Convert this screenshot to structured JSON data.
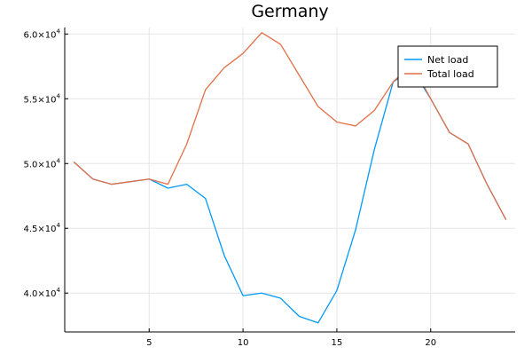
{
  "chart_data": {
    "type": "line",
    "title": "Germany",
    "xlabel": "",
    "ylabel": "",
    "x": [
      1,
      2,
      3,
      4,
      5,
      6,
      7,
      8,
      9,
      10,
      11,
      12,
      13,
      14,
      15,
      16,
      17,
      18,
      19,
      20,
      21,
      22,
      23,
      24
    ],
    "xlim": [
      0.5,
      24.5
    ],
    "ylim": [
      37000,
      60500
    ],
    "xticks": [
      5,
      10,
      15,
      20
    ],
    "yticks": [
      {
        "value": 40000,
        "mantissa": "4.0×10",
        "exp": "4"
      },
      {
        "value": 45000,
        "mantissa": "4.5×10",
        "exp": "4"
      },
      {
        "value": 50000,
        "mantissa": "5.0×10",
        "exp": "4"
      },
      {
        "value": 55000,
        "mantissa": "5.5×10",
        "exp": "4"
      },
      {
        "value": 60000,
        "mantissa": "6.0×10",
        "exp": "4"
      }
    ],
    "grid": true,
    "legend_position": "top-right",
    "series": [
      {
        "name": "Net load",
        "color": "#009af9",
        "values": [
          50100,
          48800,
          48400,
          48600,
          48800,
          48100,
          48400,
          47300,
          42900,
          39800,
          40000,
          39600,
          38200,
          37700,
          40200,
          44900,
          51100,
          56300,
          57300,
          55000,
          52400,
          51500,
          48400,
          45700
        ]
      },
      {
        "name": "Total load",
        "color": "#e26f46",
        "values": [
          50100,
          48800,
          48400,
          48600,
          48800,
          48400,
          51500,
          55700,
          57400,
          58500,
          60100,
          59200,
          56800,
          54400,
          53200,
          52900,
          54100,
          56300,
          57700,
          55000,
          52400,
          51500,
          48400,
          45700
        ]
      }
    ]
  }
}
